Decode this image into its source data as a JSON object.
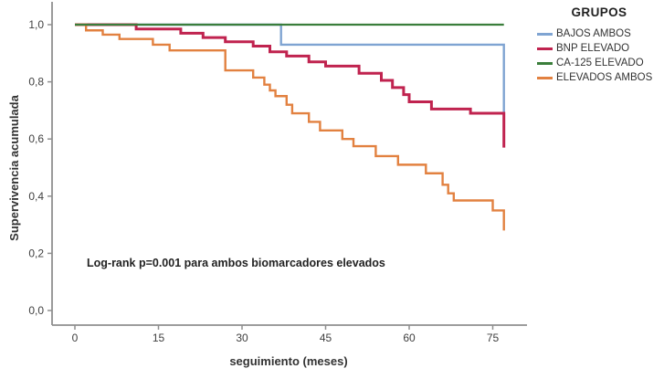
{
  "chart_data": {
    "type": "line",
    "subtype": "kaplan-meier-step",
    "title": "",
    "legend_title": "GRUPOS",
    "legend_position": "right",
    "xlabel": "seguimiento (meses)",
    "ylabel": "Supervivencia acumulada",
    "annotation": "Log-rank p=0.001 para ambos biomarcadores elevados",
    "xlim": [
      0,
      81
    ],
    "ylim": [
      0.0,
      1.0
    ],
    "grid": false,
    "x_ticks": [
      0,
      15,
      30,
      45,
      60,
      75
    ],
    "y_ticks": [
      {
        "value": 0.0,
        "label": "0,0"
      },
      {
        "value": 0.2,
        "label": "0,2"
      },
      {
        "value": 0.4,
        "label": "0,4"
      },
      {
        "value": 0.6,
        "label": "0,6"
      },
      {
        "value": 0.8,
        "label": "0,8"
      },
      {
        "value": 1.0,
        "label": "1,0"
      }
    ],
    "series": [
      {
        "name": "BAJOS AMBOS",
        "color": "#7FA4D2",
        "stroke_width": 2.4,
        "points": [
          [
            0,
            1.0
          ],
          [
            37,
            1.0
          ],
          [
            37,
            0.93
          ],
          [
            77,
            0.93
          ],
          [
            77,
            0.69
          ]
        ]
      },
      {
        "name": "BNP ELEVADO",
        "color": "#C0234F",
        "stroke_width": 3,
        "points": [
          [
            0,
            1.0
          ],
          [
            11,
            0.985
          ],
          [
            19,
            0.97
          ],
          [
            23,
            0.955
          ],
          [
            27,
            0.94
          ],
          [
            32,
            0.925
          ],
          [
            35,
            0.905
          ],
          [
            38,
            0.89
          ],
          [
            42,
            0.87
          ],
          [
            45,
            0.855
          ],
          [
            51,
            0.83
          ],
          [
            55,
            0.805
          ],
          [
            57,
            0.78
          ],
          [
            59,
            0.755
          ],
          [
            60,
            0.73
          ],
          [
            64,
            0.705
          ],
          [
            71,
            0.69
          ],
          [
            77,
            0.57
          ]
        ]
      },
      {
        "name": "CA-125 ELEVADO",
        "color": "#3A7E3B",
        "stroke_width": 2.2,
        "points": [
          [
            0,
            1.0
          ],
          [
            77,
            1.0
          ]
        ]
      },
      {
        "name": "ELEVADOS AMBOS",
        "color": "#E28140",
        "stroke_width": 2.4,
        "points": [
          [
            0,
            1.0
          ],
          [
            2,
            0.98
          ],
          [
            5,
            0.965
          ],
          [
            8,
            0.95
          ],
          [
            14,
            0.93
          ],
          [
            17,
            0.91
          ],
          [
            27,
            0.84
          ],
          [
            32,
            0.815
          ],
          [
            34,
            0.79
          ],
          [
            35,
            0.77
          ],
          [
            36,
            0.75
          ],
          [
            38,
            0.72
          ],
          [
            39,
            0.69
          ],
          [
            42,
            0.66
          ],
          [
            44,
            0.63
          ],
          [
            48,
            0.6
          ],
          [
            50,
            0.575
          ],
          [
            54,
            0.54
          ],
          [
            58,
            0.51
          ],
          [
            63,
            0.48
          ],
          [
            66,
            0.44
          ],
          [
            67,
            0.41
          ],
          [
            68,
            0.385
          ],
          [
            75,
            0.35
          ],
          [
            77,
            0.28
          ]
        ]
      }
    ],
    "colors": {
      "axis": "#8F8F8F",
      "tick_text": "#3F3F3F",
      "background": "#FFFFFF"
    }
  }
}
